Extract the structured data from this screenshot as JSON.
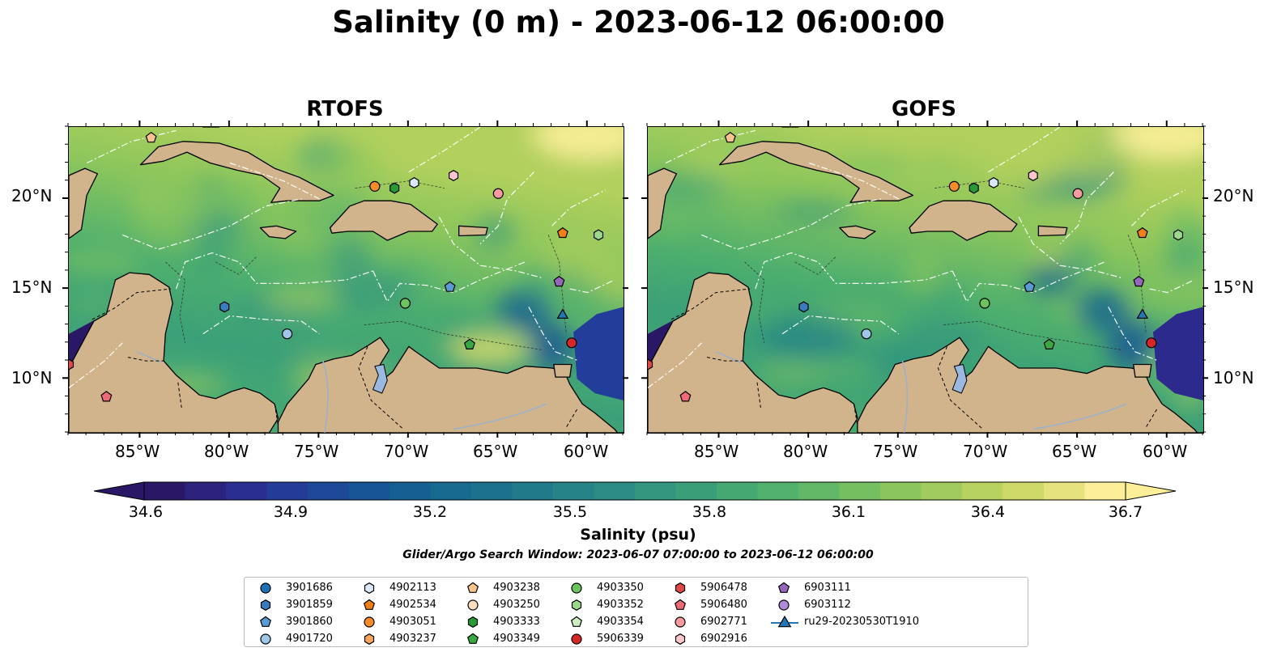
{
  "figure": {
    "title": "Salinity (0 m) - 2023-06-12 06:00:00"
  },
  "panels": [
    {
      "title": "RTOFS"
    },
    {
      "title": "GOFS"
    }
  ],
  "axes": {
    "lon_ticks": [
      "85°W",
      "80°W",
      "75°W",
      "70°W",
      "65°W",
      "60°W"
    ],
    "lat_ticks": [
      "20°N",
      "15°N",
      "10°N"
    ],
    "extent": {
      "lon": [
        -89,
        -58
      ],
      "lat": [
        7,
        24
      ]
    }
  },
  "colorbar": {
    "label": "Salinity (psu)",
    "min": 34.6,
    "max": 36.7,
    "extend": "both",
    "ticks": [
      "34.6",
      "34.9",
      "35.2",
      "35.5",
      "35.8",
      "36.1",
      "36.4",
      "36.7"
    ],
    "colormap": "haline",
    "colors": [
      "#2a1867",
      "#2c2a8d",
      "#233e9a",
      "#175496",
      "#166591",
      "#1c738c",
      "#258287",
      "#2f9181",
      "#3ba078",
      "#4eaf6e",
      "#6abb64",
      "#8cc65c",
      "#b1d05d",
      "#d7dc6c",
      "#fdef9a"
    ]
  },
  "search_window": "Glider/Argo Search Window: 2023-06-07 07:00:00 to 2023-06-12 06:00:00",
  "legend": [
    {
      "label": "3901686",
      "marker": "circle",
      "color": "#1f6fb4"
    },
    {
      "label": "3901859",
      "marker": "hexagon",
      "color": "#3a7bbf"
    },
    {
      "label": "3901860",
      "marker": "pentagon",
      "color": "#5a9bd5"
    },
    {
      "label": "4901720",
      "marker": "circle",
      "color": "#9ec6ea"
    },
    {
      "label": "4902113",
      "marker": "hexagon",
      "color": "#dbe9f7"
    },
    {
      "label": "4902534",
      "marker": "pentagon",
      "color": "#f07f16"
    },
    {
      "label": "4903051",
      "marker": "circle",
      "color": "#f58b2a"
    },
    {
      "label": "4903237",
      "marker": "hexagon",
      "color": "#f7a65a"
    },
    {
      "label": "4903238",
      "marker": "pentagon",
      "color": "#f8c48e"
    },
    {
      "label": "4903250",
      "marker": "circle",
      "color": "#fbdcbc"
    },
    {
      "label": "4903333",
      "marker": "hexagon",
      "color": "#279a35"
    },
    {
      "label": "4903349",
      "marker": "pentagon",
      "color": "#3aa842"
    },
    {
      "label": "4903350",
      "marker": "circle",
      "color": "#6cc45f"
    },
    {
      "label": "4903352",
      "marker": "hexagon",
      "color": "#9bd88b"
    },
    {
      "label": "4903354",
      "marker": "pentagon",
      "color": "#cdeec3"
    },
    {
      "label": "5906339",
      "marker": "circle",
      "color": "#d62728"
    },
    {
      "label": "5906478",
      "marker": "hexagon",
      "color": "#e04848"
    },
    {
      "label": "5906480",
      "marker": "pentagon",
      "color": "#ee6a76"
    },
    {
      "label": "6902771",
      "marker": "circle",
      "color": "#f59a9e"
    },
    {
      "label": "6902916",
      "marker": "hexagon",
      "color": "#fbc6c9"
    },
    {
      "label": "6903111",
      "marker": "pentagon",
      "color": "#9467bd"
    },
    {
      "label": "6903112",
      "marker": "circle",
      "color": "#b08ad6"
    },
    {
      "label": "ru29-20230530T1910",
      "marker": "triangle-line",
      "color": "#1f77b4"
    }
  ],
  "stations": [
    {
      "id": "4903238",
      "lon": -84.4,
      "lat": 23.4
    },
    {
      "id": "3901859",
      "lon": -80.3,
      "lat": 14.0
    },
    {
      "id": "4901720",
      "lon": -76.8,
      "lat": 12.5
    },
    {
      "id": "4903051",
      "lon": -71.9,
      "lat": 20.7
    },
    {
      "id": "4903333",
      "lon": -70.8,
      "lat": 20.6
    },
    {
      "id": "4902113",
      "lon": -69.7,
      "lat": 20.9
    },
    {
      "id": "6902916",
      "lon": -67.5,
      "lat": 21.3
    },
    {
      "id": "6902771",
      "lon": -65.0,
      "lat": 20.3
    },
    {
      "id": "4902534",
      "lon": -61.4,
      "lat": 18.1
    },
    {
      "id": "4903352",
      "lon": -59.4,
      "lat": 18.0
    },
    {
      "id": "3901860",
      "lon": -67.7,
      "lat": 15.1
    },
    {
      "id": "6903111",
      "lon": -61.6,
      "lat": 15.4
    },
    {
      "id": "4903350",
      "lon": -70.2,
      "lat": 14.2
    },
    {
      "id": "4903349",
      "lon": -66.6,
      "lat": 11.9
    },
    {
      "id": "5906339",
      "lon": -60.9,
      "lat": 12.0
    },
    {
      "id": "ru29-20230530T1910",
      "lon": -61.4,
      "lat": 13.6
    },
    {
      "id": "5906480",
      "lon": -86.9,
      "lat": 9.0
    },
    {
      "id": "5906478",
      "lon": -89.0,
      "lat": 10.8
    }
  ]
}
